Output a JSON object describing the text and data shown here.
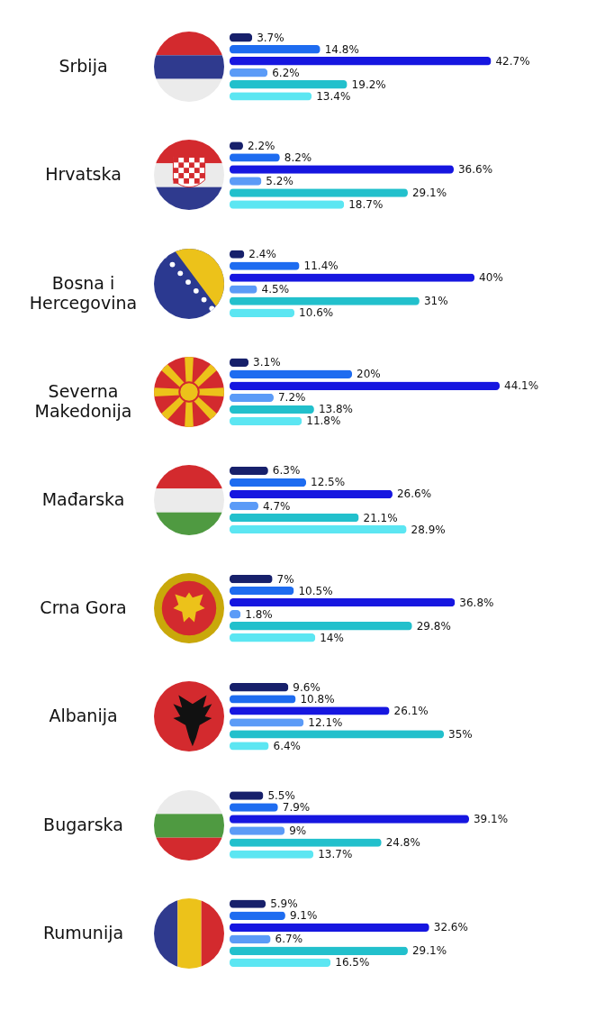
{
  "chart_data": {
    "type": "bar",
    "orientation": "horizontal",
    "legend": false,
    "categories": [
      "Srbija",
      "Hrvatska",
      "Bosna i Hercegovina",
      "Severna Makedonija",
      "Mađarska",
      "Crna Gora",
      "Albanija",
      "Bugarska",
      "Rumunija"
    ],
    "series": [
      {
        "color": "#17206b",
        "values": [
          3.7,
          2.2,
          2.4,
          3.1,
          6.3,
          7,
          9.6,
          5.5,
          5.9
        ],
        "value_labels": [
          "3.7%",
          "2.2%",
          "2.4%",
          "3.1%",
          "6.3%",
          "7%",
          "9.6%",
          "5.5%",
          "5.9%"
        ]
      },
      {
        "color": "#1e6cf0",
        "values": [
          14.8,
          8.2,
          11.4,
          20,
          12.5,
          10.5,
          10.8,
          7.9,
          9.1
        ],
        "value_labels": [
          "14.8%",
          "8.2%",
          "11.4%",
          "20%",
          "12.5%",
          "10.5%",
          "10.8%",
          "7.9%",
          "9.1%"
        ]
      },
      {
        "color": "#1616e0",
        "values": [
          42.7,
          36.6,
          40,
          44.1,
          26.6,
          36.8,
          26.1,
          39.1,
          32.6
        ],
        "value_labels": [
          "42.7%",
          "36.6%",
          "40%",
          "44.1%",
          "26.6%",
          "36.8%",
          "26.1%",
          "39.1%",
          "32.6%"
        ]
      },
      {
        "color": "#5b9bf7",
        "values": [
          6.2,
          5.2,
          4.5,
          7.2,
          4.7,
          1.8,
          12.1,
          9,
          6.7
        ],
        "value_labels": [
          "6.2%",
          "5.2%",
          "4.5%",
          "7.2%",
          "4.7%",
          "1.8%",
          "12.1%",
          "9%",
          "6.7%"
        ]
      },
      {
        "color": "#22c0cc",
        "values": [
          19.2,
          29.1,
          31,
          13.8,
          21.1,
          29.8,
          35,
          24.8,
          29.1
        ],
        "value_labels": [
          "19.2%",
          "29.1%",
          "31%",
          "13.8%",
          "21.1%",
          "29.8%",
          "35%",
          "24.8%",
          "29.1%"
        ]
      },
      {
        "color": "#5ce6f2",
        "values": [
          13.4,
          18.7,
          10.6,
          11.8,
          28.9,
          14,
          6.4,
          13.7,
          16.5
        ],
        "value_labels": [
          "13.4%",
          "18.7%",
          "10.6%",
          "11.8%",
          "28.9%",
          "14%",
          "6.4%",
          "13.7%",
          "16.5%"
        ]
      }
    ]
  }
}
